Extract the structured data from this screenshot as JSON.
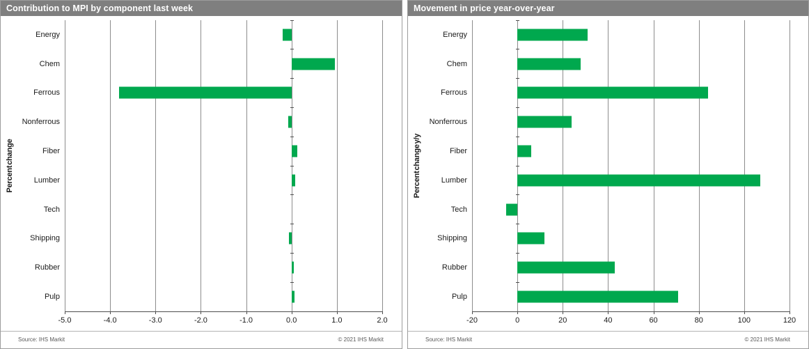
{
  "colors": {
    "bar_green": "#00A84E",
    "title_bar_bg": "#7F7F7F",
    "title_text": "#FFFFFF",
    "gridline": "#8C8C8C",
    "axis_line": "#4D4D4D",
    "label_text": "#1A1A1A",
    "footer_text": "#595959"
  },
  "chart_data": [
    {
      "type": "bar",
      "orientation": "horizontal",
      "title": "Contribution to MPI by component last week",
      "ylabel": "Percent change",
      "categories": [
        "Energy",
        "Chem",
        "Ferrous",
        "Nonferrous",
        "Fiber",
        "Lumber",
        "Tech",
        "Shipping",
        "Rubber",
        "Pulp"
      ],
      "values": [
        -0.2,
        0.95,
        -3.8,
        -0.07,
        0.12,
        0.08,
        0.0,
        -0.06,
        0.05,
        0.07
      ],
      "xlim": [
        -5.0,
        2.0
      ],
      "xticks": [
        -5,
        -4,
        -3,
        -2,
        -1,
        0,
        1,
        2
      ],
      "xtick_labels": [
        "-5.0",
        "-4.0",
        "-3.0",
        "-2.0",
        "-1.0",
        "0.0",
        "1.0",
        "2.0"
      ],
      "grid": true,
      "legend": "none",
      "bar_color": "#00A84E",
      "source": "Source: IHS Markit",
      "copyright": "© 2021 IHS Markit"
    },
    {
      "type": "bar",
      "orientation": "horizontal",
      "title": "Movement in price year-over-year",
      "ylabel": "Percent change y/y",
      "categories": [
        "Energy",
        "Chem",
        "Ferrous",
        "Nonferrous",
        "Fiber",
        "Lumber",
        "Tech",
        "Shipping",
        "Rubber",
        "Pulp"
      ],
      "values": [
        31,
        28,
        84,
        24,
        6,
        107,
        -5,
        12,
        43,
        71
      ],
      "xlim": [
        -20,
        120
      ],
      "xticks": [
        -20,
        0,
        20,
        40,
        60,
        80,
        100,
        120
      ],
      "xtick_labels": [
        "-20",
        "0",
        "20",
        "40",
        "60",
        "80",
        "100",
        "120"
      ],
      "grid": true,
      "legend": "none",
      "bar_color": "#00A84E",
      "source": "Source: IHS Markit",
      "copyright": "© 2021 IHS Markit"
    }
  ]
}
